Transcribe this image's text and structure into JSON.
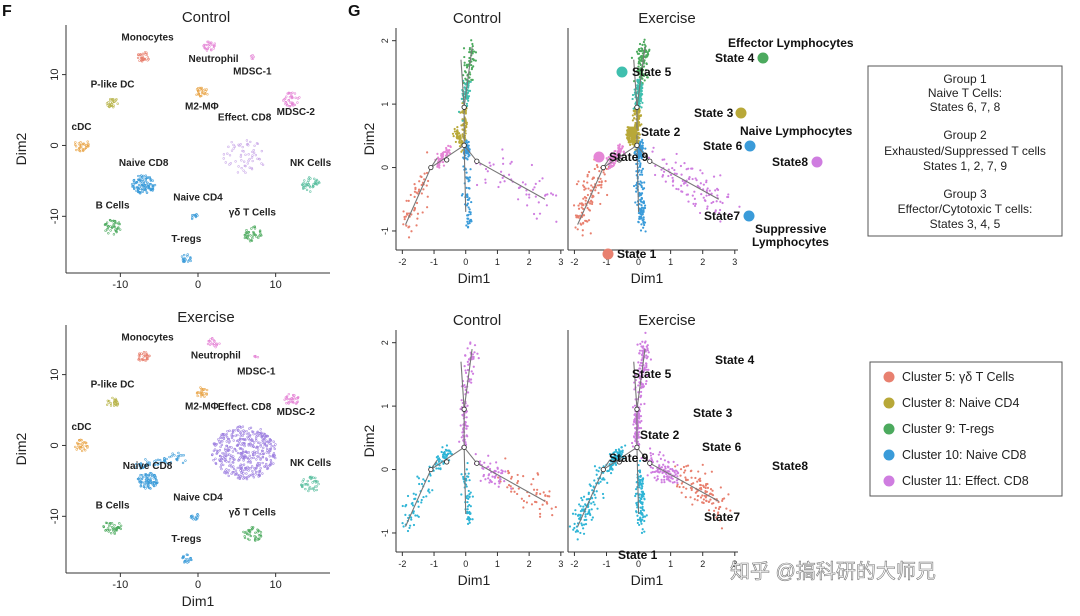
{
  "panels": {
    "F": "F",
    "G": "G"
  },
  "watermark": "知乎 @搞科研的大师兄",
  "chart_data": [
    {
      "id": "tsne_control",
      "type": "scatter",
      "title": "Control",
      "xlabel": "",
      "ylabel": "Dim2",
      "xlim": [
        -17,
        17
      ],
      "ylim": [
        -18,
        17
      ],
      "xticks": [
        "-10",
        "0",
        "10"
      ],
      "xtick_vals": [
        -10,
        0,
        10
      ],
      "yticks": [
        "10",
        "0",
        "-10"
      ],
      "ytick_vals": [
        10,
        0,
        -10
      ],
      "clusters": [
        {
          "name": "Monocytes",
          "x": -7,
          "y": 12.5,
          "r": 0.8,
          "color": "#e8806f",
          "n": 30,
          "label_dx": 0.5,
          "label_dy": 2.3
        },
        {
          "name": "Neutrophil",
          "x": 1.5,
          "y": 14,
          "r": 0.8,
          "color": "#e586d6",
          "n": 25,
          "label_dx": 0.5,
          "label_dy": -2.2
        },
        {
          "name": "MDSC-1",
          "x": 7,
          "y": 12.5,
          "r": 0.3,
          "color": "#e586d6",
          "n": 5,
          "label_dx": 0,
          "label_dy": -2.5
        },
        {
          "name": "P-like DC",
          "x": -11,
          "y": 6,
          "r": 0.8,
          "color": "#b8b44a",
          "n": 25,
          "label_dx": 0,
          "label_dy": 2.2
        },
        {
          "name": "M2-MΦ",
          "x": 0.5,
          "y": 7.5,
          "r": 0.8,
          "color": "#e9a64a",
          "n": 25,
          "label_dx": 0,
          "label_dy": -2.4
        },
        {
          "name": "MDSC-2",
          "x": 12,
          "y": 6.5,
          "r": 1.1,
          "color": "#e586d6",
          "n": 40,
          "label_dx": 0.6,
          "label_dy": -2.2
        },
        {
          "name": "cDC",
          "x": -15,
          "y": 0,
          "r": 1,
          "color": "#e9a64a",
          "n": 30,
          "label_dx": 0,
          "label_dy": 2.2
        },
        {
          "name": "Effect. CD8",
          "x": 6,
          "y": -1.5,
          "r": 2.8,
          "color": "#c9a8e8",
          "n": 60,
          "label_dx": 0,
          "label_dy": 5.0
        },
        {
          "name": "Naive CD8",
          "x": -7,
          "y": -5.5,
          "r": 1.5,
          "color": "#3a9bd9",
          "n": 110,
          "label_dx": 0,
          "label_dy": 2.6
        },
        {
          "name": "NK Cells",
          "x": 14.5,
          "y": -5.5,
          "r": 1.2,
          "color": "#5bbfa0",
          "n": 40,
          "label_dx": 0,
          "label_dy": 2.6
        },
        {
          "name": "B Cells",
          "x": -11,
          "y": -11.5,
          "r": 1.2,
          "color": "#4caa5e",
          "n": 40,
          "label_dx": 0,
          "label_dy": 2.6
        },
        {
          "name": "Naive CD4",
          "x": -0.5,
          "y": -10,
          "r": 0.5,
          "color": "#3a9bd9",
          "n": 10,
          "label_dx": 0.5,
          "label_dy": 2.2
        },
        {
          "name": "γδ T Cells",
          "x": 7,
          "y": -12.5,
          "r": 1.2,
          "color": "#4caa5e",
          "n": 40,
          "label_dx": 0,
          "label_dy": 2.6
        },
        {
          "name": "T-regs",
          "x": -1.5,
          "y": -16,
          "r": 0.7,
          "color": "#3a9bd9",
          "n": 20,
          "label_dx": 0,
          "label_dy": 2.4
        }
      ]
    },
    {
      "id": "tsne_exercise",
      "type": "scatter",
      "title": "Exercise",
      "xlabel": "Dim1",
      "ylabel": "Dim2",
      "xlim": [
        -17,
        17
      ],
      "ylim": [
        -18,
        17
      ],
      "xticks": [
        "-10",
        "0",
        "10"
      ],
      "xtick_vals": [
        -10,
        0,
        10
      ],
      "yticks": [
        "10",
        "0",
        "-10"
      ],
      "ytick_vals": [
        10,
        0,
        -10
      ],
      "clusters": [
        {
          "name": "Monocytes",
          "x": -7,
          "y": 12.5,
          "r": 0.8,
          "color": "#e8806f",
          "n": 30,
          "label_dx": 0.5,
          "label_dy": 2.3
        },
        {
          "name": "Neutrophil",
          "x": 2,
          "y": 14.5,
          "r": 0.8,
          "color": "#e586d6",
          "n": 20,
          "label_dx": 0.3,
          "label_dy": -2.2
        },
        {
          "name": "MDSC-1",
          "x": 7.5,
          "y": 12.5,
          "r": 0.3,
          "color": "#e586d6",
          "n": 5,
          "label_dx": 0,
          "label_dy": -2.5
        },
        {
          "name": "P-like DC",
          "x": -11,
          "y": 6,
          "r": 0.8,
          "color": "#b8b44a",
          "n": 25,
          "label_dx": 0,
          "label_dy": 2.2
        },
        {
          "name": "M2-MΦ",
          "x": 0.5,
          "y": 7.5,
          "r": 0.8,
          "color": "#e9a64a",
          "n": 25,
          "label_dx": 0,
          "label_dy": -2.4
        },
        {
          "name": "MDSC-2",
          "x": 12,
          "y": 6.5,
          "r": 1.0,
          "color": "#e586d6",
          "n": 35,
          "label_dx": 0.6,
          "label_dy": -2.2
        },
        {
          "name": "cDC",
          "x": -15,
          "y": 0,
          "r": 0.9,
          "color": "#e9a64a",
          "n": 30,
          "label_dx": 0,
          "label_dy": 2.2
        },
        {
          "name": "Effect. CD8",
          "x": 6,
          "y": -1,
          "r": 4.2,
          "color": "#9d7fe0",
          "n": 420,
          "label_dx": 0,
          "label_dy": 6.0
        },
        {
          "name": "Naive CD8",
          "x": -6.5,
          "y": -5,
          "r": 1.3,
          "color": "#3a9bd9",
          "n": 80,
          "label_dx": 0,
          "label_dy": 1.7
        },
        {
          "name": "NK Cells",
          "x": 14.5,
          "y": -5.5,
          "r": 1.2,
          "color": "#5bbfa0",
          "n": 40,
          "label_dx": 0,
          "label_dy": 2.6
        },
        {
          "name": "B Cells",
          "x": -11,
          "y": -11.5,
          "r": 1.2,
          "color": "#4caa5e",
          "n": 40,
          "label_dx": 0,
          "label_dy": 2.6
        },
        {
          "name": "Naive CD4",
          "x": -0.5,
          "y": -10,
          "r": 0.6,
          "color": "#3a9bd9",
          "n": 15,
          "label_dx": 0.5,
          "label_dy": 2.2
        },
        {
          "name": "γδ T Cells",
          "x": 7,
          "y": -12.5,
          "r": 1.2,
          "color": "#4caa5e",
          "n": 40,
          "label_dx": 0,
          "label_dy": 2.6
        },
        {
          "name": "T-regs",
          "x": -1.5,
          "y": -16,
          "r": 0.7,
          "color": "#3a9bd9",
          "n": 20,
          "label_dx": 0,
          "label_dy": 2.4
        }
      ],
      "streaks": [
        {
          "from": [
            -8,
            -3
          ],
          "to": [
            -2,
            -1.5
          ],
          "color": "#3a9bd9",
          "n": 60
        }
      ]
    },
    {
      "id": "trajectory_state",
      "type": "scatter",
      "subtitle_left": "Control",
      "subtitle_right": "Exercise",
      "xlabel": "Dim1",
      "ylabel": "Dim2",
      "xlim": [
        -2.2,
        3.1
      ],
      "ylim": [
        -1.3,
        2.2
      ],
      "xticks": [
        "-2",
        "-1",
        "0",
        "1",
        "2",
        "3"
      ],
      "xtick_vals": [
        -2,
        -1,
        0,
        1,
        2,
        3
      ],
      "yticks": [
        "2",
        "1",
        "0",
        "-1"
      ],
      "ytick_vals": [
        2,
        1,
        0,
        -1
      ],
      "branches": [
        {
          "state": "State 1",
          "color": "#e8806f",
          "from": [
            -1.1,
            0.0
          ],
          "to": [
            -1.9,
            -0.9
          ],
          "spread": 0.14
        },
        {
          "state": "State 2",
          "color": "#b8a838",
          "from": [
            -0.05,
            0.35
          ],
          "to": [
            -0.3,
            0.55
          ],
          "spread": 0.06
        },
        {
          "state": "State 3",
          "color": "#b8a838",
          "from": [
            -0.05,
            0.45
          ],
          "to": [
            -0.05,
            0.95
          ],
          "spread": 0.05
        },
        {
          "state": "State 4",
          "color": "#4caa5e",
          "from": [
            0.05,
            1.35
          ],
          "to": [
            0.2,
            1.95
          ],
          "spread": 0.09
        },
        {
          "state": "State 5",
          "color": "#3fbfae",
          "from": [
            -0.05,
            0.95
          ],
          "to": [
            0.05,
            1.35
          ],
          "spread": 0.06
        },
        {
          "state": "State 6",
          "color": "#3a9bd9",
          "from": [
            0.0,
            0.15
          ],
          "to": [
            0.05,
            0.35
          ],
          "spread": 0.05
        },
        {
          "state": "State 7",
          "color": "#3a9bd9",
          "from": [
            0.0,
            0.1
          ],
          "to": [
            0.1,
            -0.9
          ],
          "spread": 0.07
        },
        {
          "state": "State 8",
          "color": "#cf7de0",
          "from": [
            0.3,
            0.1
          ],
          "to": [
            2.7,
            -0.55
          ],
          "spread": 0.16
        },
        {
          "state": "State 9",
          "color": "#e586d6",
          "from": [
            -0.5,
            0.3
          ],
          "to": [
            -0.9,
            0.05
          ],
          "spread": 0.05
        }
      ],
      "tree": [
        [
          [
            -1.9,
            -0.9
          ],
          [
            -1.1,
            0.0
          ]
        ],
        [
          [
            -1.1,
            0.0
          ],
          [
            -0.05,
            0.35
          ]
        ],
        [
          [
            -0.05,
            0.35
          ],
          [
            -0.05,
            0.95
          ]
        ],
        [
          [
            -0.05,
            0.95
          ],
          [
            0.2,
            1.9
          ]
        ],
        [
          [
            -0.05,
            0.95
          ],
          [
            -0.15,
            1.7
          ]
        ],
        [
          [
            -0.05,
            0.35
          ],
          [
            0.35,
            0.1
          ]
        ],
        [
          [
            0.35,
            0.1
          ],
          [
            2.5,
            -0.5
          ]
        ],
        [
          [
            -0.05,
            0.35
          ],
          [
            0.0,
            -0.7
          ]
        ],
        [
          [
            -1.1,
            0.0
          ],
          [
            -0.9,
            0.15
          ]
        ]
      ],
      "nodes": [
        [
          -1.1,
          0.0
        ],
        [
          -0.05,
          0.35
        ],
        [
          -0.05,
          0.95
        ],
        [
          0.35,
          0.1
        ],
        [
          -0.6,
          0.12
        ]
      ]
    },
    {
      "id": "trajectory_cluster",
      "type": "scatter",
      "subtitle_left": "Control",
      "subtitle_right": "Exercise",
      "xlabel": "Dim1",
      "ylabel": "Dim2",
      "xlim": [
        -2.2,
        3.1
      ],
      "ylim": [
        -1.3,
        2.2
      ],
      "xticks": [
        "-2",
        "-1",
        "0",
        "1",
        "2",
        "3"
      ],
      "xtick_vals": [
        -2,
        -1,
        0,
        1,
        2,
        3
      ],
      "yticks": [
        "2",
        "1",
        "0",
        "-1"
      ],
      "ytick_vals": [
        2,
        1,
        0,
        -1
      ],
      "branches": [
        {
          "cluster": "Cluster 10: Naive CD8",
          "color": "#2fb5d6",
          "from": [
            -1.1,
            0.0
          ],
          "to": [
            -1.9,
            -0.9
          ],
          "spread": 0.13
        },
        {
          "cluster": "Cluster 11: Effect. CD8",
          "color": "#cf7de0",
          "from": [
            -0.05,
            0.35
          ],
          "to": [
            -0.05,
            0.95
          ],
          "spread": 0.05
        },
        {
          "cluster": "Cluster 11: Effect. CD8",
          "color": "#cf7de0",
          "from": [
            -0.05,
            0.95
          ],
          "to": [
            0.2,
            1.95
          ],
          "spread": 0.09
        },
        {
          "cluster": "Cluster 10: Naive CD8",
          "color": "#2fb5d6",
          "from": [
            0.0,
            0.1
          ],
          "to": [
            0.1,
            -0.9
          ],
          "spread": 0.07
        },
        {
          "cluster": "Cluster 5: γδ T Cells",
          "color": "#e8806f",
          "from": [
            1.2,
            -0.1
          ],
          "to": [
            2.7,
            -0.55
          ],
          "spread": 0.14
        },
        {
          "cluster": "Cluster 11: Effect. CD8",
          "color": "#cf7de0",
          "from": [
            0.3,
            0.1
          ],
          "to": [
            1.2,
            -0.1
          ],
          "spread": 0.1
        },
        {
          "cluster": "Cluster 10: Naive CD8",
          "color": "#2fb5d6",
          "from": [
            -0.5,
            0.3
          ],
          "to": [
            -0.9,
            0.05
          ],
          "spread": 0.05
        }
      ],
      "tree": [
        [
          [
            -1.9,
            -0.9
          ],
          [
            -1.1,
            0.0
          ]
        ],
        [
          [
            -1.1,
            0.0
          ],
          [
            -0.05,
            0.35
          ]
        ],
        [
          [
            -0.05,
            0.35
          ],
          [
            -0.05,
            0.95
          ]
        ],
        [
          [
            -0.05,
            0.95
          ],
          [
            0.2,
            1.9
          ]
        ],
        [
          [
            -0.05,
            0.95
          ],
          [
            -0.15,
            1.7
          ]
        ],
        [
          [
            -0.05,
            0.35
          ],
          [
            0.35,
            0.1
          ]
        ],
        [
          [
            0.35,
            0.1
          ],
          [
            2.5,
            -0.5
          ]
        ],
        [
          [
            -0.05,
            0.35
          ],
          [
            0.0,
            -0.7
          ]
        ],
        [
          [
            -1.1,
            0.0
          ],
          [
            -0.9,
            0.15
          ]
        ]
      ],
      "nodes": [
        [
          -1.1,
          0.0
        ],
        [
          -0.05,
          0.35
        ],
        [
          -0.05,
          0.95
        ],
        [
          0.35,
          0.1
        ],
        [
          -0.6,
          0.12
        ]
      ]
    }
  ],
  "state_labels": [
    {
      "text": "State 1",
      "color": "#e8806f",
      "marker": true
    },
    {
      "text": "State 2",
      "color": "#b8a838",
      "marker": true
    },
    {
      "text": "State 3",
      "color": "#b8a838",
      "marker": true
    },
    {
      "text": "State 4",
      "color": "#4caa5e",
      "marker": true
    },
    {
      "text": "State 5",
      "color": "#3fbfae",
      "marker": true
    },
    {
      "text": "State 6",
      "color": "#3a9bd9",
      "marker": true
    },
    {
      "text": "State7",
      "color": "#3a9bd9",
      "marker": true
    },
    {
      "text": "State8",
      "color": "#cf7de0",
      "marker": true
    },
    {
      "text": "State 9",
      "color": "#e586d6",
      "marker": true
    }
  ],
  "population_labels": [
    "Effector Lymphocytes",
    "Naive Lymphocytes",
    "Suppressive",
    "Lymphocytes"
  ],
  "state_labels_plain": [
    "State 4",
    "State 5",
    "State 3",
    "State 2",
    "State 6",
    "State 9",
    "State8",
    "State7",
    "State 1"
  ],
  "groups_box": {
    "lines": [
      "Group 1",
      "Naive T Cells:",
      "States 6, 7, 8",
      "",
      "Group 2",
      "Exhausted/Suppressed T cells",
      "States 1, 2, 7, 9",
      "",
      "Group 3",
      "Effector/Cytotoxic T cells:",
      "States 3, 4, 5"
    ]
  },
  "cluster_legend": [
    {
      "label": "Cluster 5: γδ T Cells",
      "color": "#e8806f"
    },
    {
      "label": "Cluster 8: Naive CD4",
      "color": "#b8a838"
    },
    {
      "label": "Cluster 9: T-regs",
      "color": "#4caa5e"
    },
    {
      "label": "Cluster 10: Naive CD8",
      "color": "#3a9bd9"
    },
    {
      "label": "Cluster 11: Effect. CD8",
      "color": "#cf7de0"
    }
  ]
}
